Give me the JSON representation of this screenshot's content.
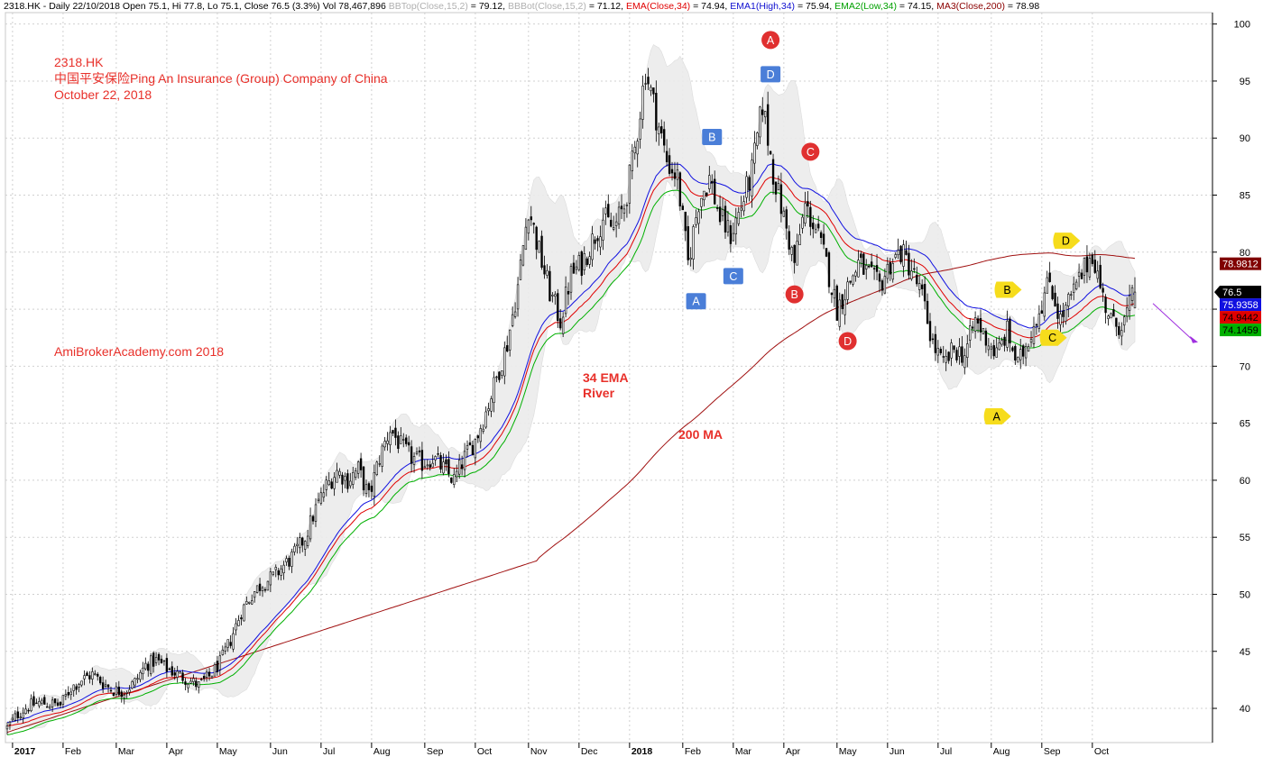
{
  "header": {
    "prefix": "2318.HK - Daily 22/10/2018 Open 75.1, Hi 77.8, Lo 75.1, Close 76.5 (3.3%) Vol 78,467,896",
    "bbtop": "BBTop(Close,15,2)",
    "bbtop_val": " = 79.12, ",
    "bbbot": "BBBot(Close,15,2)",
    "bbbot_val": " = 71.12, ",
    "ema": "EMA(Close,34)",
    "ema_val": " = 74.94, ",
    "ema1": "EMA1(High,34)",
    "ema1_val": " = 75.94, ",
    "ema2": "EMA2(Low,34)",
    "ema2_val": " = 74.15, ",
    "ma3": "MA3(Close,200)",
    "ma3_val": " = 78.98"
  },
  "annotations": {
    "ticker": "2318.HK",
    "company": "中国平安保险Ping An Insurance (Group) Company of China",
    "date": "October 22, 2018",
    "site": "AmiBrokerAcademy.com  2018",
    "ema_line1": "34 EMA",
    "ema_line2": "River",
    "ma_label": "200 MA"
  },
  "colors": {
    "candle": "#000000",
    "ema_close": "#e00000",
    "ema_high": "#1010e0",
    "ema_low": "#00b000",
    "ma200": "#a01010",
    "band": "#ececec",
    "grid": "#d0d0d0",
    "label_red_marker": "#e03030",
    "label_blue_marker": "#4a7ed8",
    "label_yellow_marker": "#f6dc1c",
    "arrow": "#a030e0"
  },
  "chart_data": {
    "type": "candlestick",
    "ylim": [
      37,
      101
    ],
    "y_ticks": [
      40,
      45,
      50,
      55,
      60,
      65,
      70,
      75,
      80,
      85,
      90,
      95,
      100
    ],
    "x_labels": [
      {
        "label": "2017",
        "bold": true
      },
      {
        "label": "Feb",
        "bold": false
      },
      {
        "label": "Mar",
        "bold": false
      },
      {
        "label": "Apr",
        "bold": false
      },
      {
        "label": "May",
        "bold": false
      },
      {
        "label": "Jun",
        "bold": false
      },
      {
        "label": "Jul",
        "bold": false
      },
      {
        "label": "Aug",
        "bold": false
      },
      {
        "label": "Sep",
        "bold": false
      },
      {
        "label": "Oct",
        "bold": false
      },
      {
        "label": "Nov",
        "bold": false
      },
      {
        "label": "Dec",
        "bold": false
      },
      {
        "label": "2018",
        "bold": true
      },
      {
        "label": "Feb",
        "bold": false
      },
      {
        "label": "Mar",
        "bold": false
      },
      {
        "label": "Apr",
        "bold": false
      },
      {
        "label": "May",
        "bold": false
      },
      {
        "label": "Jun",
        "bold": false
      },
      {
        "label": "Jul",
        "bold": false
      },
      {
        "label": "Aug",
        "bold": false
      },
      {
        "label": "Sep",
        "bold": false
      },
      {
        "label": "Oct",
        "bold": false
      }
    ],
    "close_path": [
      [
        0,
        38.3
      ],
      [
        4,
        39.5
      ],
      [
        8,
        40.2
      ],
      [
        12,
        40.5
      ],
      [
        16,
        40.4
      ],
      [
        20,
        40.3
      ],
      [
        24,
        41.8
      ],
      [
        28,
        42.5
      ],
      [
        32,
        43.0
      ],
      [
        36,
        42.2
      ],
      [
        40,
        41.6
      ],
      [
        44,
        41.5
      ],
      [
        48,
        42.3
      ],
      [
        52,
        43.8
      ],
      [
        56,
        44.2
      ],
      [
        60,
        43.5
      ],
      [
        64,
        43.0
      ],
      [
        68,
        42.5
      ],
      [
        72,
        42.0
      ],
      [
        76,
        42.8
      ],
      [
        80,
        44.0
      ],
      [
        84,
        46.0
      ],
      [
        88,
        48.5
      ],
      [
        92,
        50.0
      ],
      [
        96,
        51.0
      ],
      [
        100,
        51.5
      ],
      [
        104,
        52.5
      ],
      [
        108,
        53.5
      ],
      [
        112,
        55.0
      ],
      [
        116,
        57.5
      ],
      [
        120,
        59.5
      ],
      [
        124,
        60.8
      ],
      [
        128,
        60.0
      ],
      [
        132,
        61.0
      ],
      [
        136,
        58.5
      ],
      [
        140,
        62.0
      ],
      [
        144,
        64.5
      ],
      [
        148,
        63.0
      ],
      [
        152,
        62.0
      ],
      [
        156,
        61.5
      ],
      [
        160,
        62.0
      ],
      [
        164,
        61.0
      ],
      [
        168,
        60.0
      ],
      [
        172,
        62.0
      ],
      [
        176,
        63.5
      ],
      [
        180,
        66.0
      ],
      [
        184,
        69.0
      ],
      [
        188,
        72.0
      ],
      [
        192,
        77.0
      ],
      [
        196,
        84.0
      ],
      [
        200,
        80.0
      ],
      [
        204,
        76.5
      ],
      [
        208,
        74.0
      ],
      [
        212,
        78.0
      ],
      [
        216,
        79.0
      ],
      [
        220,
        81.0
      ],
      [
        224,
        83.0
      ],
      [
        228,
        82.0
      ],
      [
        232,
        84.0
      ],
      [
        236,
        89.0
      ],
      [
        240,
        96.0
      ],
      [
        244,
        92.0
      ],
      [
        248,
        88.0
      ],
      [
        252,
        86.5
      ],
      [
        256,
        79.0
      ],
      [
        260,
        84.5
      ],
      [
        264,
        86.5
      ],
      [
        268,
        83.0
      ],
      [
        272,
        81.5
      ],
      [
        276,
        84.0
      ],
      [
        280,
        87.0
      ],
      [
        284,
        93.0
      ],
      [
        288,
        87.0
      ],
      [
        292,
        83.0
      ],
      [
        296,
        79.0
      ],
      [
        300,
        84.0
      ],
      [
        304,
        82.0
      ],
      [
        308,
        79.0
      ],
      [
        312,
        75.0
      ],
      [
        316,
        77.0
      ],
      [
        320,
        79.0
      ],
      [
        324,
        78.0
      ],
      [
        328,
        77.0
      ],
      [
        332,
        79.0
      ],
      [
        336,
        80.0
      ],
      [
        340,
        78.5
      ],
      [
        344,
        76.0
      ],
      [
        348,
        72.0
      ],
      [
        352,
        70.0
      ],
      [
        356,
        71.5
      ],
      [
        360,
        71.0
      ],
      [
        364,
        74.0
      ],
      [
        368,
        72.5
      ],
      [
        372,
        71.0
      ],
      [
        376,
        73.0
      ],
      [
        380,
        70.0
      ],
      [
        384,
        72.5
      ],
      [
        388,
        75.0
      ],
      [
        392,
        77.5
      ],
      [
        396,
        74.0
      ],
      [
        400,
        76.0
      ],
      [
        404,
        78.0
      ],
      [
        408,
        80.0
      ],
      [
        412,
        76.0
      ],
      [
        416,
        73.5
      ],
      [
        420,
        74.0
      ],
      [
        424,
        76.5
      ]
    ],
    "bar_count": 425,
    "labels": [
      {
        "text": "A",
        "shape": "circle",
        "color": "red",
        "price": 98.6,
        "bar": 287
      },
      {
        "text": "D",
        "shape": "square",
        "color": "blue",
        "price": 95.6,
        "bar": 287
      },
      {
        "text": "B",
        "shape": "square",
        "color": "blue",
        "price": 90.1,
        "bar": 265
      },
      {
        "text": "C",
        "shape": "circle",
        "color": "red",
        "price": 88.8,
        "bar": 302
      },
      {
        "text": "C",
        "shape": "square",
        "color": "blue",
        "price": 77.9,
        "bar": 273
      },
      {
        "text": "A",
        "shape": "square",
        "color": "blue",
        "price": 75.7,
        "bar": 259
      },
      {
        "text": "B",
        "shape": "circle",
        "color": "red",
        "price": 76.3,
        "bar": 296
      },
      {
        "text": "D",
        "shape": "circle",
        "color": "red",
        "price": 72.2,
        "bar": 316
      },
      {
        "text": "D",
        "shape": "tag",
        "color": "yellow",
        "price": 81.0,
        "bar": 398
      },
      {
        "text": "B",
        "shape": "tag",
        "color": "yellow",
        "price": 76.7,
        "bar": 376
      },
      {
        "text": "C",
        "shape": "tag",
        "color": "yellow",
        "price": 72.5,
        "bar": 393
      },
      {
        "text": "A",
        "shape": "tag",
        "color": "yellow",
        "price": 65.6,
        "bar": 372
      }
    ],
    "price_tags": [
      {
        "value": 78.9812,
        "text": "78.9812",
        "bg": "#800000",
        "fg": "#ffffff"
      },
      {
        "value": 76.5,
        "text": "76.5",
        "bg": "#000000",
        "fg": "#ffffff"
      },
      {
        "value": 75.9358,
        "text": "75.9358",
        "bg": "#1010e0",
        "fg": "#ffffff"
      },
      {
        "value": 74.9442,
        "text": "74.9442",
        "bg": "#e00000",
        "fg": "#000000"
      },
      {
        "value": 74.1459,
        "text": "74.1459",
        "bg": "#00b000",
        "fg": "#000000"
      }
    ]
  }
}
